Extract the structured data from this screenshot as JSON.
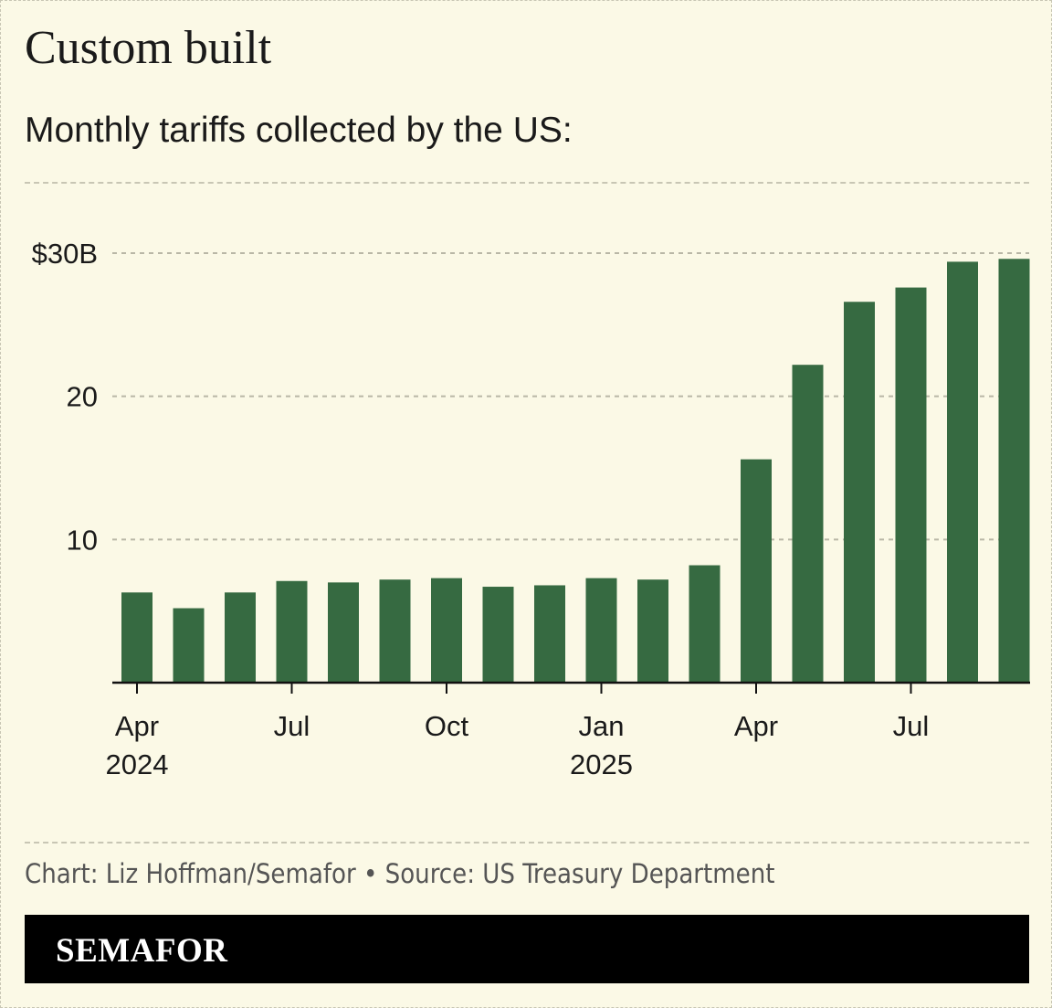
{
  "header": {
    "title": "Custom built",
    "subtitle": "Monthly tariffs collected by the US:"
  },
  "chart_data": {
    "type": "bar",
    "title": "Custom built",
    "subtitle": "Monthly tariffs collected by the US:",
    "categories": [
      "Apr 2024",
      "May 2024",
      "Jun 2024",
      "Jul 2024",
      "Aug 2024",
      "Sep 2024",
      "Oct 2024",
      "Nov 2024",
      "Dec 2024",
      "Jan 2025",
      "Feb 2025",
      "Mar 2025",
      "Apr 2025",
      "May 2025",
      "Jun 2025",
      "Jul 2025",
      "Aug 2025",
      "Sep 2025"
    ],
    "values": [
      6.3,
      5.2,
      6.3,
      7.1,
      7.0,
      7.2,
      7.3,
      6.7,
      6.8,
      7.3,
      7.2,
      8.2,
      15.6,
      22.2,
      26.6,
      27.6,
      29.4,
      29.6
    ],
    "ylim": [
      0,
      30
    ],
    "yticks": [
      {
        "value": 10,
        "label": "10"
      },
      {
        "value": 20,
        "label": "20"
      },
      {
        "value": 30,
        "label": "$30B"
      }
    ],
    "xticks": [
      {
        "index": 0,
        "label": "Apr",
        "sublabel": "2024"
      },
      {
        "index": 3,
        "label": "Jul",
        "sublabel": ""
      },
      {
        "index": 6,
        "label": "Oct",
        "sublabel": ""
      },
      {
        "index": 9,
        "label": "Jan",
        "sublabel": "2025"
      },
      {
        "index": 12,
        "label": "Apr",
        "sublabel": ""
      },
      {
        "index": 15,
        "label": "Jul",
        "sublabel": ""
      }
    ],
    "grid": true,
    "bar_color": "#366a41",
    "background": "#fbf9e6"
  },
  "footer": {
    "credit": "Chart: Liz Hoffman/Semafor • Source: US Treasury Department",
    "logo": "SEMAFOR"
  }
}
